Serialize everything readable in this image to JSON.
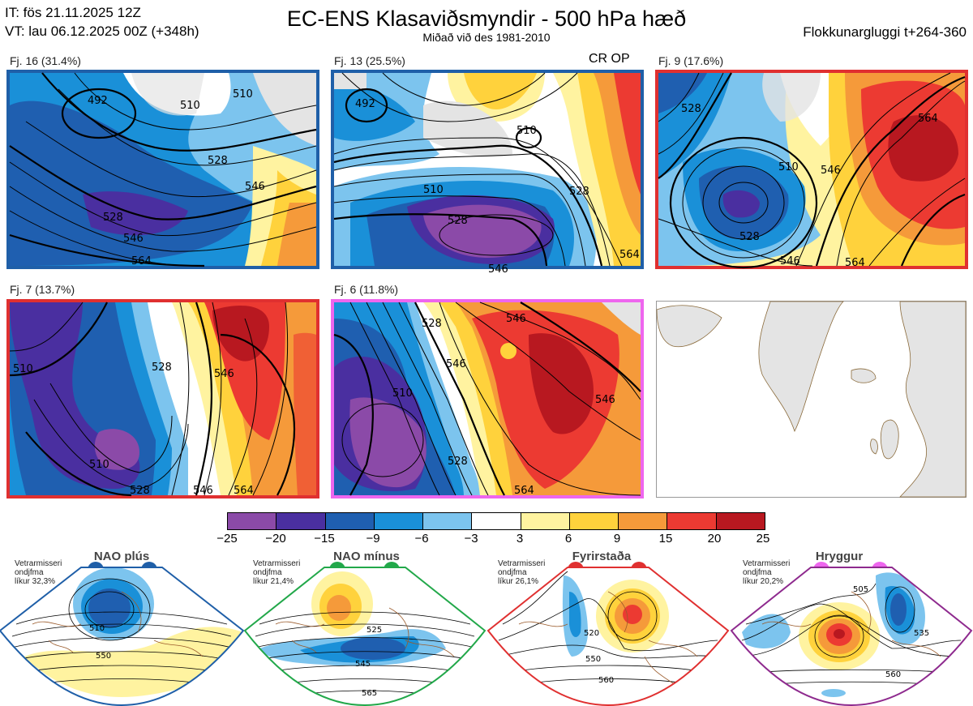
{
  "header": {
    "it_line": "IT: fös 21.11.2025 12Z",
    "vt_line": "VT: lau 06.12.2025 00Z  (+348h)",
    "title": "EC-ENS Klasaviðsmyndir - 500 hPa hæð",
    "subtitle": "Miðað við des 1981-2010",
    "window": "Flokkunargluggi t+264-360"
  },
  "panels": [
    {
      "label": "Fj. 16 (31.4%)",
      "border_color": "#1f5fa8",
      "tag": ""
    },
    {
      "label": "Fj. 13 (25.5%)",
      "border_color": "#1f5fa8",
      "tag": "CR OP"
    },
    {
      "label": "Fj. 9 (17.6%)",
      "border_color": "#e03030",
      "tag": ""
    },
    {
      "label": "Fj. 7 (13.7%)",
      "border_color": "#e03030",
      "tag": ""
    },
    {
      "label": "Fj. 6 (11.8%)",
      "border_color": "#ee66ee",
      "tag": ""
    }
  ],
  "contour_labels": {
    "p1": [
      "492",
      "510",
      "510",
      "528",
      "546",
      "564",
      "528",
      "546"
    ],
    "p2": [
      "492",
      "510",
      "510",
      "528",
      "546",
      "528",
      "564"
    ],
    "p3": [
      "528",
      "510",
      "528",
      "546",
      "564",
      "546",
      "564"
    ],
    "p4": [
      "510",
      "528",
      "546",
      "510",
      "528",
      "546",
      "564"
    ],
    "p5": [
      "528",
      "546",
      "510",
      "528",
      "546",
      "546",
      "564"
    ]
  },
  "colorbar": {
    "ticks": [
      "−25",
      "−20",
      "−15",
      "−9",
      "−6",
      "−3",
      "3",
      "6",
      "9",
      "15",
      "20",
      "25"
    ],
    "colors": [
      "#8b4aa8",
      "#4a2fa0",
      "#1f5fb0",
      "#1a90d8",
      "#7cc4ee",
      "#ffffff",
      "#fff3a0",
      "#ffd23c",
      "#f59a3a",
      "#ec3a32",
      "#b81820"
    ]
  },
  "regimes": [
    {
      "name": "NAO plús",
      "info": [
        "Vetrarmisseri",
        "ondjfma",
        "líkur 32,3%"
      ],
      "color": "#1f5fa8",
      "labels": [
        "510",
        "550"
      ]
    },
    {
      "name": "NAO mínus",
      "info": [
        "Vetrarmisseri",
        "ondjfma",
        "líkur 21,4%"
      ],
      "color": "#22a84a",
      "labels": [
        "525",
        "545",
        "565"
      ]
    },
    {
      "name": "Fyrirstaða",
      "info": [
        "Vetrarmisseri",
        "ondjfma",
        "líkur 26,1%"
      ],
      "color": "#e03030",
      "labels": [
        "520",
        "550",
        "560"
      ]
    },
    {
      "name": "Hryggur",
      "info": [
        "Vetrarmisseri",
        "ondjfma",
        "líkur 20,2%"
      ],
      "color": "#ee66ee",
      "labels": [
        "505",
        "535",
        "560"
      ]
    }
  ]
}
